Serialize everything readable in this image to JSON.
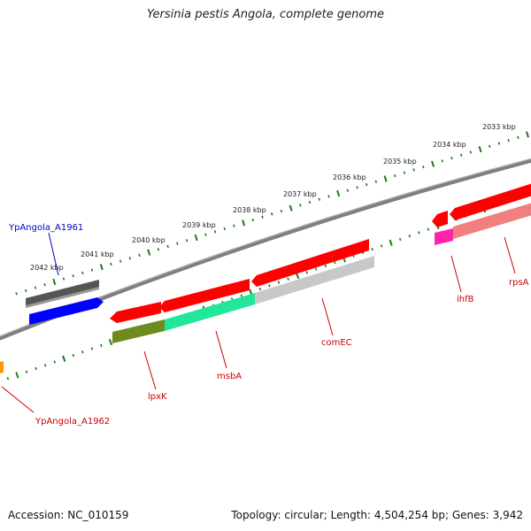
{
  "title": "Yersinia pestis Angola, complete genome",
  "footer": {
    "accession": "Accession: NC_010159",
    "summary": "Topology: circular; Length: 4,504,254 bp; Genes: 3,942"
  },
  "colors": {
    "backbone": "#8a8a8a",
    "tick": "#1a7a1a",
    "forward_label": "#cc0000",
    "locus_label": "#0000cc"
  },
  "ticks": [
    "2033 kbp",
    "2034 kbp",
    "2035 kbp",
    "2036 kbp",
    "2037 kbp",
    "2038 kbp",
    "2039 kbp",
    "2040 kbp",
    "2041 kbp",
    "2042 kbp"
  ],
  "labels": [
    {
      "id": "ypangola-a1961",
      "text": "YpAngola_A1961",
      "color": "#0000cc"
    },
    {
      "id": "ypangola-a1962",
      "text": "YpAngola_A1962",
      "color": "#cc0000"
    },
    {
      "id": "lpxk",
      "text": "lpxK",
      "color": "#cc0000"
    },
    {
      "id": "msba",
      "text": "msbA",
      "color": "#cc0000"
    },
    {
      "id": "comec",
      "text": "comEC",
      "color": "#cc0000"
    },
    {
      "id": "ihfb",
      "text": "ihfB",
      "color": "#cc0000"
    },
    {
      "id": "rpsa",
      "text": "rpsA",
      "color": "#cc0000"
    }
  ]
}
